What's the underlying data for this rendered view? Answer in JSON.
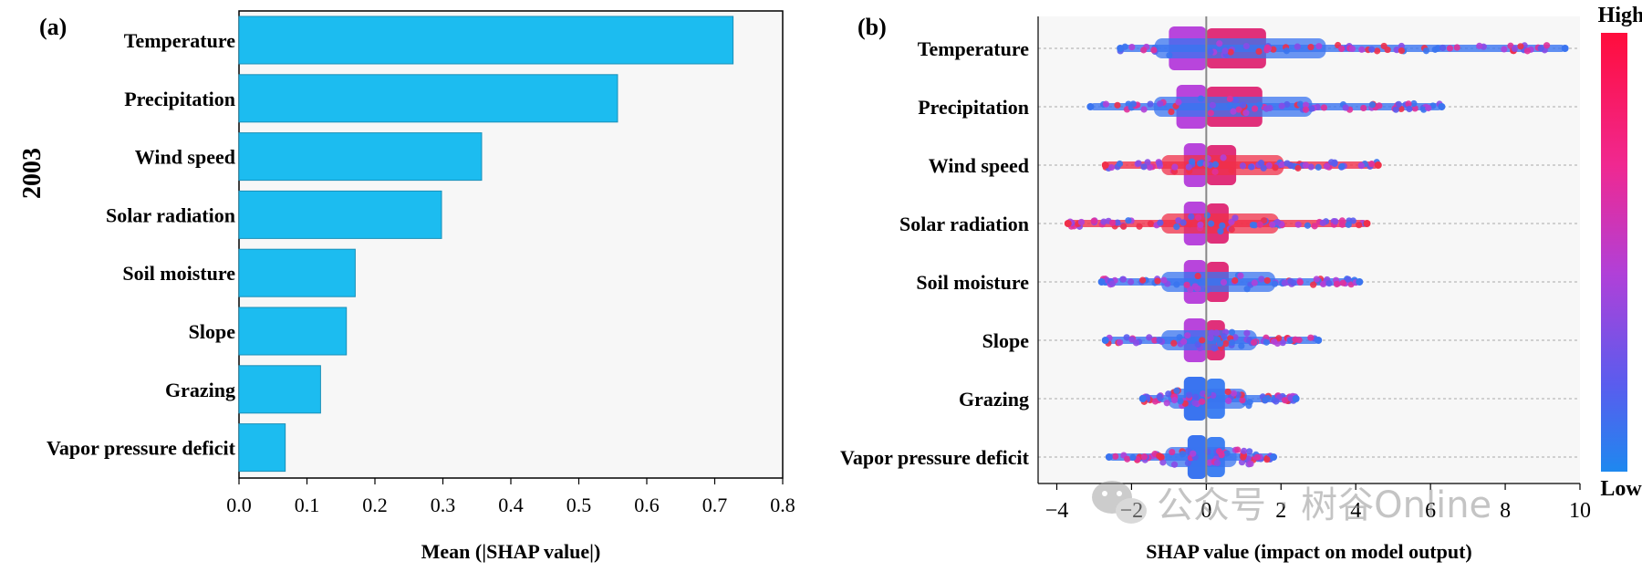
{
  "chart_data": [
    {
      "panel_label": "(a)",
      "type": "bar",
      "orientation": "horizontal",
      "side_label": "2003",
      "xlabel": "Mean (|SHAP value|)",
      "ylabel": "",
      "categories": [
        "Temperature",
        "Precipitation",
        "Wind speed",
        "Solar radiation",
        "Soil moisture",
        "Slope",
        "Grazing",
        "Vapor pressure deficit"
      ],
      "values": [
        0.727,
        0.557,
        0.357,
        0.298,
        0.171,
        0.158,
        0.12,
        0.068
      ],
      "xlim": [
        0.0,
        0.8
      ],
      "xticks": [
        "0.0",
        "0.1",
        "0.2",
        "0.3",
        "0.4",
        "0.5",
        "0.6",
        "0.7",
        "0.8"
      ],
      "bar_color": "#1cbcf0",
      "bar_edge_color": "#1a8fb8",
      "background": "#f7f7f7"
    },
    {
      "panel_label": "(b)",
      "type": "scatter",
      "subtype": "beeswarm",
      "xlabel": "SHAP value (impact on model output)",
      "ylabel": "",
      "categories": [
        "Temperature",
        "Precipitation",
        "Wind speed",
        "Solar radiation",
        "Soil moisture",
        "Slope",
        "Grazing",
        "Vapor pressure deficit"
      ],
      "xlim": [
        -4.5,
        10
      ],
      "xticks": [
        "−4",
        "−2",
        "0",
        "2",
        "4",
        "6",
        "8",
        "10"
      ],
      "series": [
        {
          "name": "Temperature",
          "min": -2.3,
          "max": 9.6,
          "core": [
            -1.0,
            0.0,
            1.6
          ],
          "tail_color": "#3a74f0"
        },
        {
          "name": "Precipitation",
          "min": -3.1,
          "max": 6.3,
          "core": [
            -0.8,
            0.0,
            1.5
          ],
          "tail_color": "#3a74f0"
        },
        {
          "name": "Wind speed",
          "min": -2.7,
          "max": 4.6,
          "core": [
            -0.6,
            0.0,
            0.8
          ],
          "tail_color": "#f0304a"
        },
        {
          "name": "Solar radiation",
          "min": -3.7,
          "max": 4.3,
          "core": [
            -0.6,
            0.0,
            0.6
          ],
          "tail_color": "#f0304a"
        },
        {
          "name": "Soil moisture",
          "min": -2.8,
          "max": 4.1,
          "core": [
            -0.6,
            0.0,
            0.6
          ],
          "tail_color": "#3a74f0"
        },
        {
          "name": "Slope",
          "min": -2.7,
          "max": 3.0,
          "core": [
            -0.6,
            0.0,
            0.5
          ],
          "tail_color": "#3a74f0"
        },
        {
          "name": "Grazing",
          "min": -1.7,
          "max": 2.4,
          "core": [
            -0.6,
            0.0,
            0.5
          ],
          "tail_color": "#3a74f0"
        },
        {
          "name": "Vapor pressure deficit",
          "min": -2.6,
          "max": 1.8,
          "core": [
            -0.5,
            0.0,
            0.5
          ],
          "tail_color": "#3a74f0"
        }
      ],
      "colorbar": {
        "high_label": "High",
        "low_label": "Low",
        "high_color": "#ff0d3c",
        "low_color": "#1e88ef"
      },
      "background": "#f7f7f7"
    }
  ],
  "watermark": {
    "text": "公众号 · 树谷Online"
  }
}
